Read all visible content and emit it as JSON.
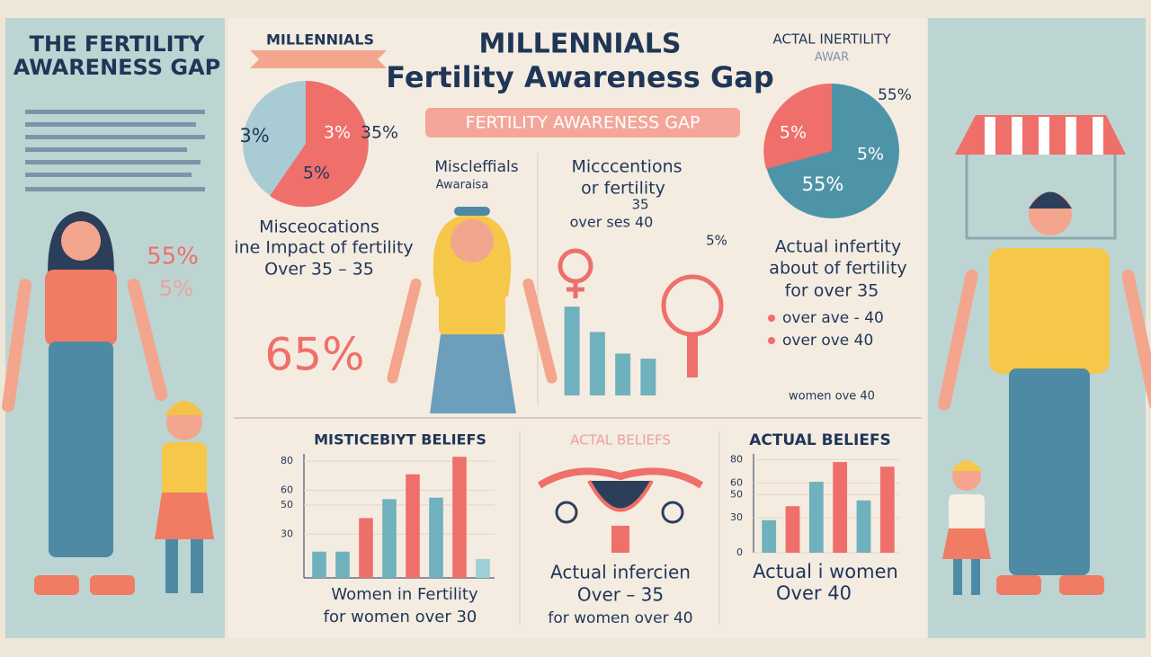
{
  "left_panel": {
    "title_1": "THE FERTILITY",
    "title_2": "AWARENESS GAP",
    "stat_1": "55%",
    "stat_2": "5%"
  },
  "header": {
    "ribbon": "MILLENNIALS",
    "title_1": "MILLENNIALS",
    "title_2": "Fertility Awareness Gap",
    "banner": "FERTILITY  AWARENESS GAP"
  },
  "left_pie": {
    "labels": [
      "3%",
      "3%",
      "35%",
      "5%"
    ],
    "caption_1": "Misceocations",
    "caption_2": "ine Impact of fertility",
    "caption_3": "Over 35 – 35",
    "big_stat": "65%"
  },
  "middle": {
    "heading_1": "Miscleffials",
    "heading_2": "Awaraisa",
    "heading_3": "Micccentions",
    "heading_4": "or fertility",
    "heading_5": "35",
    "heading_6": "over ses 40",
    "stat": "5%"
  },
  "right_pie": {
    "heading_1": "ACTAL INERTILITY",
    "heading_2": "AWAR",
    "labels": [
      "55%",
      "5%",
      "5%",
      "55%"
    ],
    "caption_1": "Actual infertity",
    "caption_2": "about of fertility",
    "caption_3": "for over 35",
    "bullet_1": "over ave - 40",
    "bullet_2": "over ove 40",
    "note": "women ove 40"
  },
  "bottom": {
    "left_title": "MISTICEBIYT BELIEFS",
    "left_caption_1": "Women in Fertility",
    "left_caption_2": "for women over 30",
    "mid_title": "ACTAL BELIEFS",
    "mid_caption_1": "Actual infercien",
    "mid_caption_2": "Over – 35",
    "mid_caption_3": "for women over 40",
    "right_title": "ACTUAL BELIEFS",
    "right_caption_1": "Actual i women",
    "right_caption_2": "Over 40"
  },
  "charts": [
    {
      "type": "bar",
      "ylim": [
        0,
        85
      ],
      "yticks": [
        30,
        50,
        60,
        80
      ],
      "values": [
        18,
        18,
        41,
        54,
        71,
        55,
        83,
        13
      ],
      "colors": [
        "#6fb1bd",
        "#6fb1bd",
        "#ef6f6a",
        "#6fb1bd",
        "#ef6f6a",
        "#6fb1bd",
        "#ef6f6a",
        "#9fcfd6"
      ]
    },
    {
      "type": "bar",
      "ylim": [
        0,
        85
      ],
      "values": [
        70,
        50,
        33,
        29
      ],
      "colors": [
        "#6fb1bd",
        "#6fb1bd",
        "#6fb1bd",
        "#6fb1bd"
      ]
    },
    {
      "type": "bar",
      "ylim": [
        0,
        85
      ],
      "yticks": [
        0,
        30,
        50,
        60,
        80
      ],
      "values": [
        28,
        40,
        61,
        78,
        45,
        74
      ],
      "colors": [
        "#6fb1bd",
        "#ef6f6a",
        "#6fb1bd",
        "#ef6f6a",
        "#6fb1bd",
        "#ef6f6a"
      ]
    }
  ]
}
